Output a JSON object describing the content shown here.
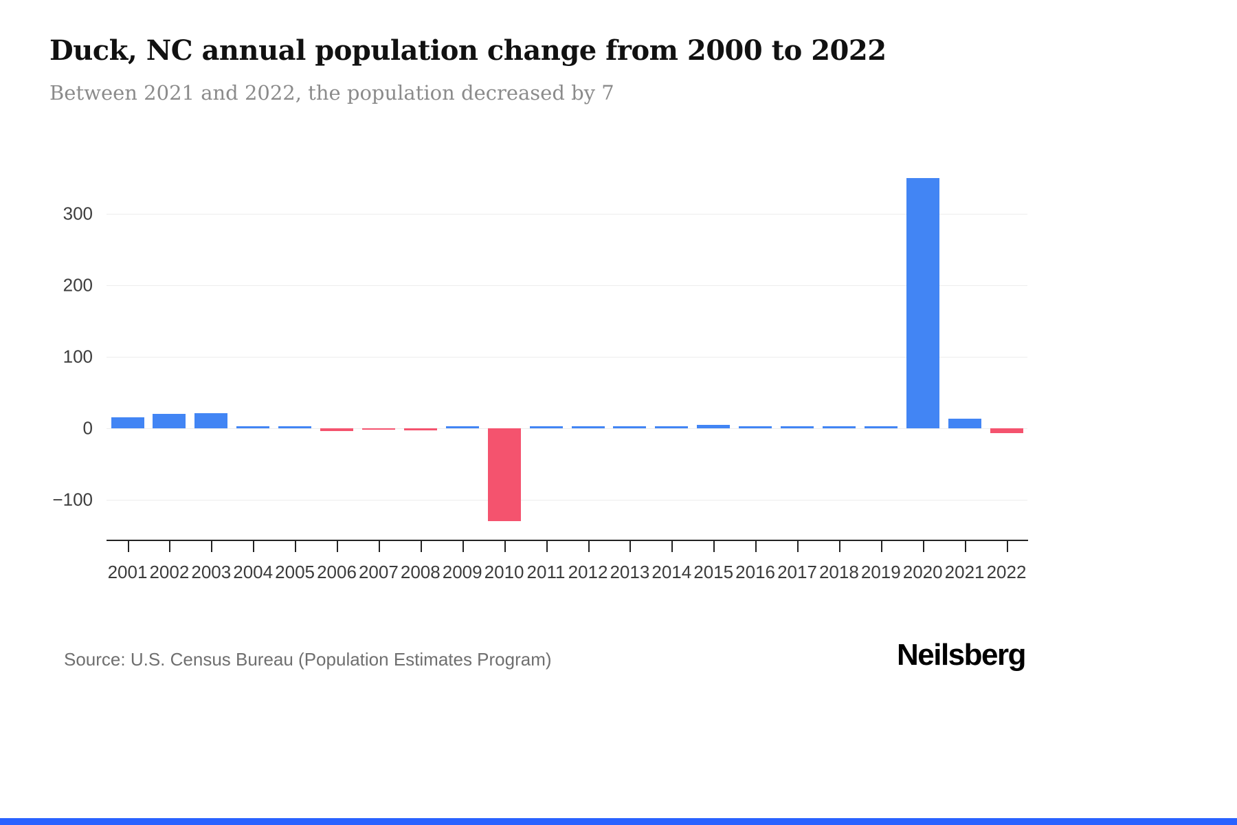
{
  "chart_data": {
    "type": "bar",
    "title": "Duck, NC annual population change from 2000 to 2022",
    "subtitle": "Between 2021 and 2022, the population decreased by 7",
    "categories": [
      "2001",
      "2002",
      "2003",
      "2004",
      "2005",
      "2006",
      "2007",
      "2008",
      "2009",
      "2010",
      "2011",
      "2012",
      "2013",
      "2014",
      "2015",
      "2016",
      "2017",
      "2018",
      "2019",
      "2020",
      "2021",
      "2022"
    ],
    "values": [
      15,
      20,
      21,
      2,
      1,
      -4,
      -2,
      -3,
      2,
      -130,
      2,
      2,
      3,
      1,
      5,
      2,
      2,
      2,
      2,
      350,
      13,
      -7
    ],
    "xlabel": "",
    "ylabel": "",
    "ylim": [
      -156,
      378
    ],
    "yticks": [
      -100,
      0,
      100,
      200,
      300
    ],
    "ytick_labels": [
      "−100",
      "0",
      "100",
      "200",
      "300"
    ],
    "grid": true,
    "legend": false,
    "colors": {
      "positive": "#4285f4",
      "negative": "#f4536e"
    }
  },
  "footer": {
    "source": "Source: U.S. Census Bureau (Population Estimates Program)",
    "brand": "Neilsberg",
    "accent_color": "#2962ff"
  }
}
